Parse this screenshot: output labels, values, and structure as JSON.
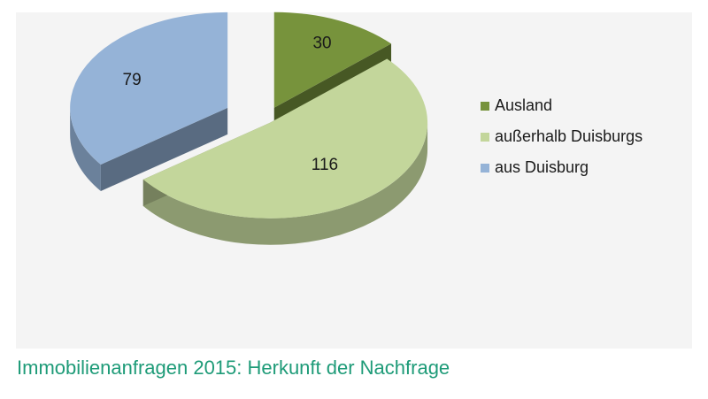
{
  "chart_data": {
    "type": "pie",
    "style": "3d-exploded",
    "title": "",
    "categories": [
      "Ausland",
      "außerhalb Duisburgs",
      "aus Duisburg"
    ],
    "values": [
      30,
      116,
      79
    ],
    "colors": [
      "#77933c",
      "#c3d69b",
      "#95b3d7"
    ],
    "legend": {
      "placement": "right",
      "entries": [
        "Ausland",
        "außerhalb Duisburgs",
        "aus Duisburg"
      ]
    },
    "data_labels": [
      "30",
      "116",
      "79"
    ]
  },
  "caption": "Immobilienanfragen 2015: Herkunft der Nachfrage"
}
